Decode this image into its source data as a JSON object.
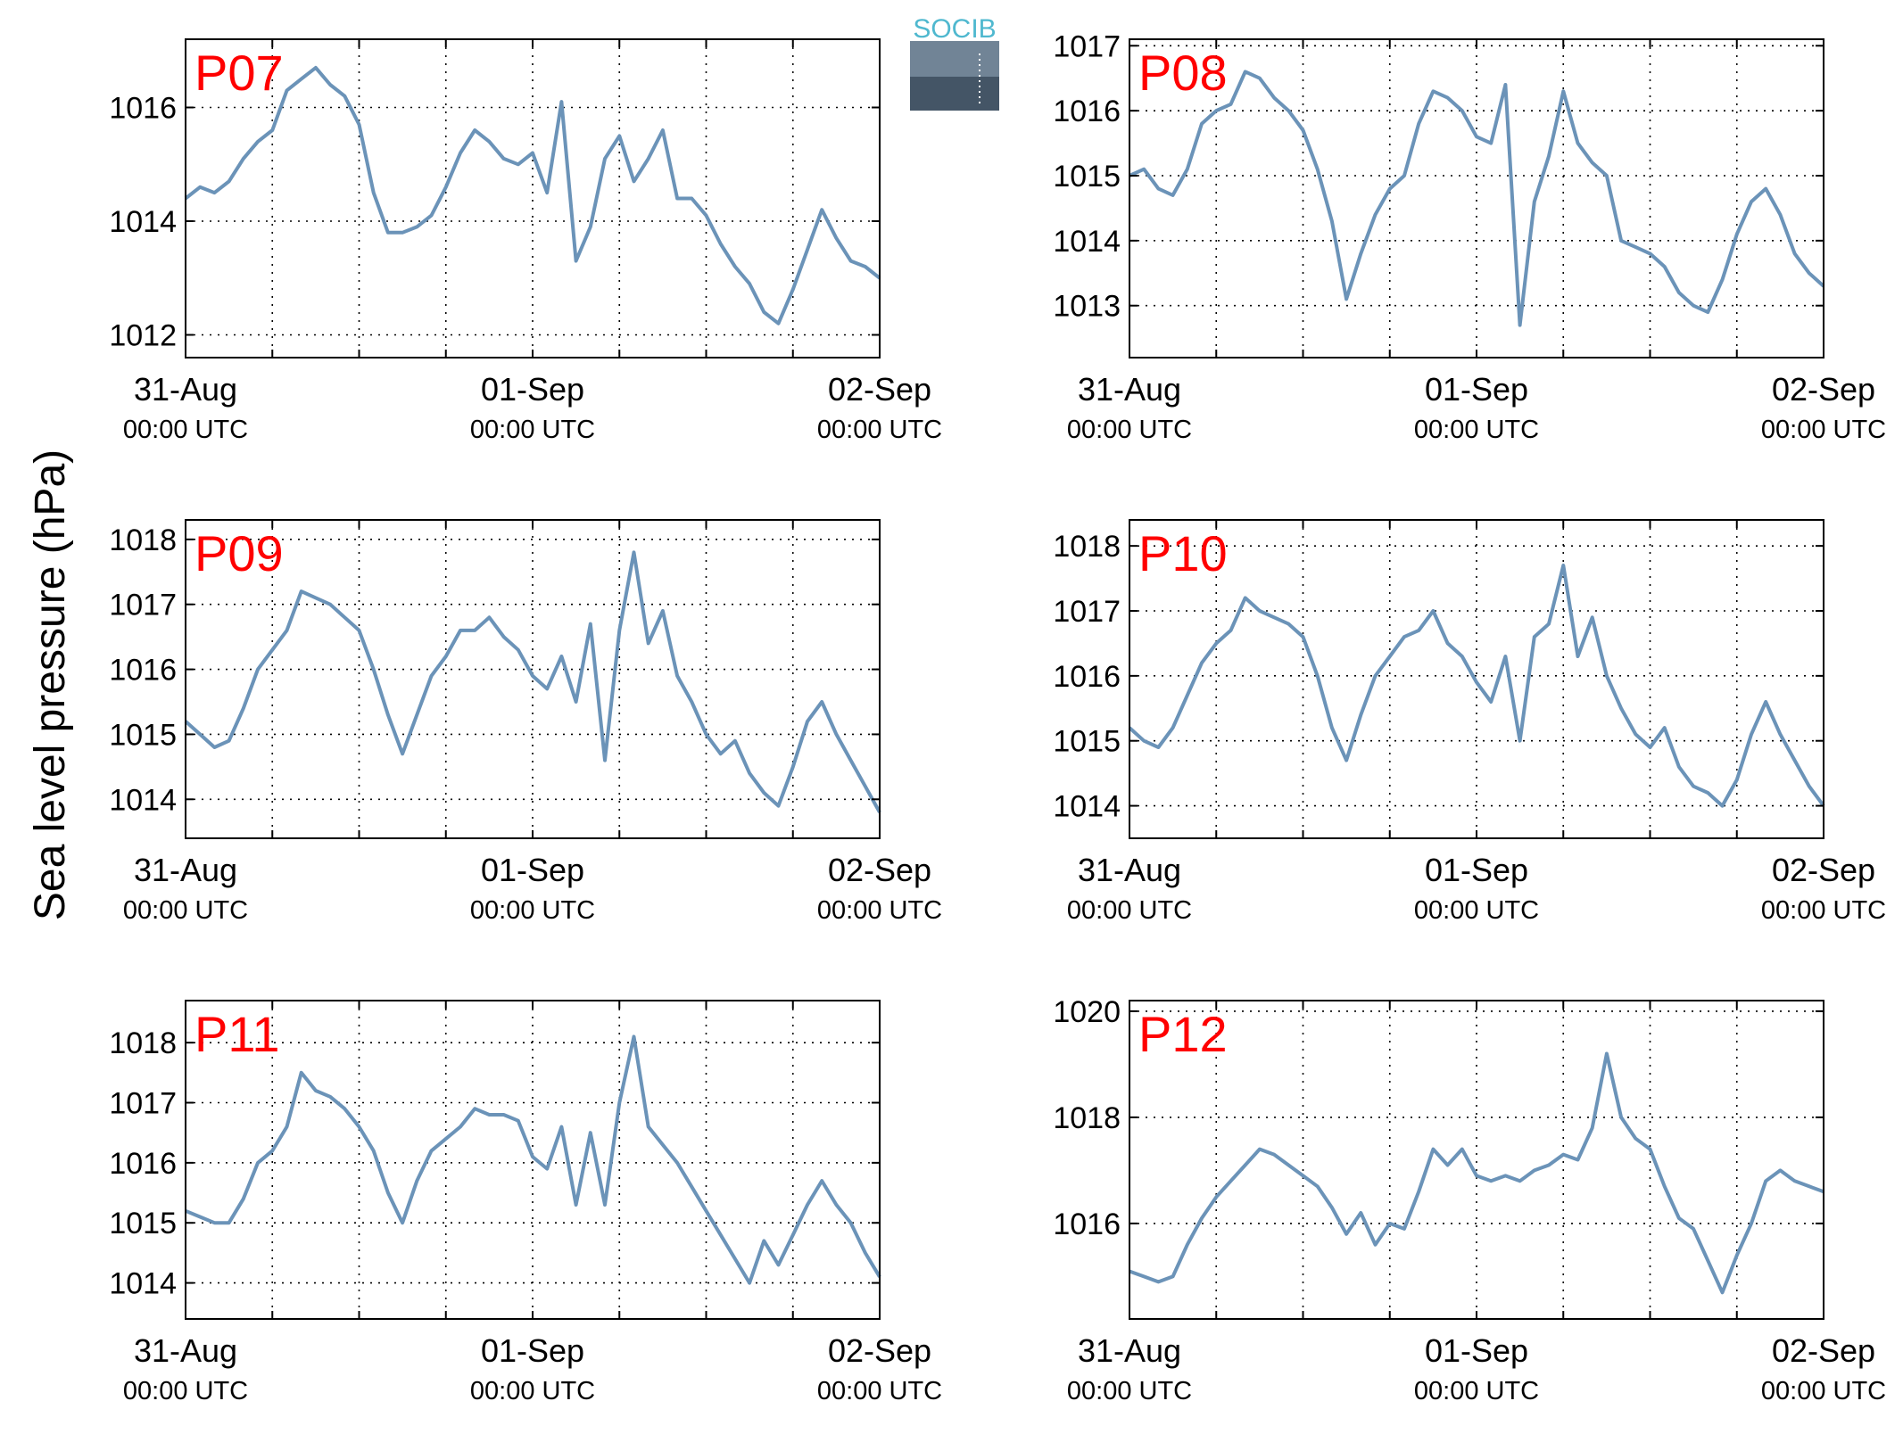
{
  "figure": {
    "ylabel": "Sea level pressure (hPa)",
    "logo_text": "SOCIB",
    "colors": {
      "line": "#6b93b8",
      "panel_label": "#ff0000",
      "axis": "#000000",
      "grid": "#000000"
    }
  },
  "chart_data": [
    {
      "type": "line",
      "title": "P07",
      "xlim": [
        0,
        48
      ],
      "ylim": [
        1011.6,
        1017.2
      ],
      "yticks": [
        1012,
        1014,
        1016
      ],
      "xticks": [
        {
          "hour": 0,
          "label": "31-Aug",
          "sublabel": "00:00 UTC"
        },
        {
          "hour": 24,
          "label": "01-Sep",
          "sublabel": "00:00 UTC"
        },
        {
          "hour": 48,
          "label": "02-Sep",
          "sublabel": "00:00 UTC"
        }
      ],
      "minor_xticks": [
        6,
        12,
        18,
        30,
        36,
        42
      ],
      "series": [
        {
          "x": [
            0,
            1,
            2,
            3,
            4,
            5,
            6,
            7,
            8,
            9,
            10,
            11,
            12,
            13,
            14,
            15,
            16,
            17,
            18,
            19,
            20,
            21,
            22,
            23,
            24,
            25,
            26,
            27,
            28,
            29,
            30,
            31,
            32,
            33,
            34,
            35,
            36,
            37,
            38,
            39,
            40,
            41,
            42,
            43,
            44,
            45,
            46,
            47,
            48
          ],
          "values": [
            1014.4,
            1014.6,
            1014.5,
            1014.7,
            1015.1,
            1015.4,
            1015.6,
            1016.3,
            1016.5,
            1016.7,
            1016.4,
            1016.2,
            1015.7,
            1014.5,
            1013.8,
            1013.8,
            1013.9,
            1014.1,
            1014.6,
            1015.2,
            1015.6,
            1015.4,
            1015.1,
            1015.0,
            1015.2,
            1014.5,
            1016.1,
            1013.3,
            1013.9,
            1015.1,
            1015.5,
            1014.7,
            1015.1,
            1015.6,
            1014.4,
            1014.4,
            1014.1,
            1013.6,
            1013.2,
            1012.9,
            1012.4,
            1012.2,
            1012.8,
            1013.5,
            1014.2,
            1013.7,
            1013.3,
            1013.2,
            1013.0
          ]
        }
      ]
    },
    {
      "type": "line",
      "title": "P08",
      "xlim": [
        0,
        48
      ],
      "ylim": [
        1012.2,
        1017.1
      ],
      "yticks": [
        1013,
        1014,
        1015,
        1016,
        1017
      ],
      "xticks": [
        {
          "hour": 0,
          "label": "31-Aug",
          "sublabel": "00:00 UTC"
        },
        {
          "hour": 24,
          "label": "01-Sep",
          "sublabel": "00:00 UTC"
        },
        {
          "hour": 48,
          "label": "02-Sep",
          "sublabel": "00:00 UTC"
        }
      ],
      "minor_xticks": [
        6,
        12,
        18,
        30,
        36,
        42
      ],
      "series": [
        {
          "x": [
            0,
            1,
            2,
            3,
            4,
            5,
            6,
            7,
            8,
            9,
            10,
            11,
            12,
            13,
            14,
            15,
            16,
            17,
            18,
            19,
            20,
            21,
            22,
            23,
            24,
            25,
            26,
            27,
            28,
            29,
            30,
            31,
            32,
            33,
            34,
            35,
            36,
            37,
            38,
            39,
            40,
            41,
            42,
            43,
            44,
            45,
            46,
            47,
            48
          ],
          "values": [
            1015.0,
            1015.1,
            1014.8,
            1014.7,
            1015.1,
            1015.8,
            1016.0,
            1016.1,
            1016.6,
            1016.5,
            1016.2,
            1016.0,
            1015.7,
            1015.1,
            1014.3,
            1013.1,
            1013.8,
            1014.4,
            1014.8,
            1015.0,
            1015.8,
            1016.3,
            1016.2,
            1016.0,
            1015.6,
            1015.5,
            1016.4,
            1012.7,
            1014.6,
            1015.3,
            1016.3,
            1015.5,
            1015.2,
            1015.0,
            1014.0,
            1013.9,
            1013.8,
            1013.6,
            1013.2,
            1013.0,
            1012.9,
            1013.4,
            1014.1,
            1014.6,
            1014.8,
            1014.4,
            1013.8,
            1013.5,
            1013.3
          ]
        }
      ]
    },
    {
      "type": "line",
      "title": "P09",
      "xlim": [
        0,
        48
      ],
      "ylim": [
        1013.4,
        1018.3
      ],
      "yticks": [
        1014,
        1015,
        1016,
        1017,
        1018
      ],
      "xticks": [
        {
          "hour": 0,
          "label": "31-Aug",
          "sublabel": "00:00 UTC"
        },
        {
          "hour": 24,
          "label": "01-Sep",
          "sublabel": "00:00 UTC"
        },
        {
          "hour": 48,
          "label": "02-Sep",
          "sublabel": "00:00 UTC"
        }
      ],
      "minor_xticks": [
        6,
        12,
        18,
        30,
        36,
        42
      ],
      "series": [
        {
          "x": [
            0,
            1,
            2,
            3,
            4,
            5,
            6,
            7,
            8,
            9,
            10,
            11,
            12,
            13,
            14,
            15,
            16,
            17,
            18,
            19,
            20,
            21,
            22,
            23,
            24,
            25,
            26,
            27,
            28,
            29,
            30,
            31,
            32,
            33,
            34,
            35,
            36,
            37,
            38,
            39,
            40,
            41,
            42,
            43,
            44,
            45,
            46,
            47,
            48
          ],
          "values": [
            1015.2,
            1015.0,
            1014.8,
            1014.9,
            1015.4,
            1016.0,
            1016.3,
            1016.6,
            1017.2,
            1017.1,
            1017.0,
            1016.8,
            1016.6,
            1016.0,
            1015.3,
            1014.7,
            1015.3,
            1015.9,
            1016.2,
            1016.6,
            1016.6,
            1016.8,
            1016.5,
            1016.3,
            1015.9,
            1015.7,
            1016.2,
            1015.5,
            1016.7,
            1014.6,
            1016.6,
            1017.8,
            1016.4,
            1016.9,
            1015.9,
            1015.5,
            1015.0,
            1014.7,
            1014.9,
            1014.4,
            1014.1,
            1013.9,
            1014.5,
            1015.2,
            1015.5,
            1015.0,
            1014.6,
            1014.2,
            1013.8
          ]
        }
      ]
    },
    {
      "type": "line",
      "title": "P10",
      "xlim": [
        0,
        48
      ],
      "ylim": [
        1013.5,
        1018.4
      ],
      "yticks": [
        1014,
        1015,
        1016,
        1017,
        1018
      ],
      "xticks": [
        {
          "hour": 0,
          "label": "31-Aug",
          "sublabel": "00:00 UTC"
        },
        {
          "hour": 24,
          "label": "01-Sep",
          "sublabel": "00:00 UTC"
        },
        {
          "hour": 48,
          "label": "02-Sep",
          "sublabel": "00:00 UTC"
        }
      ],
      "minor_xticks": [
        6,
        12,
        18,
        30,
        36,
        42
      ],
      "series": [
        {
          "x": [
            0,
            1,
            2,
            3,
            4,
            5,
            6,
            7,
            8,
            9,
            10,
            11,
            12,
            13,
            14,
            15,
            16,
            17,
            18,
            19,
            20,
            21,
            22,
            23,
            24,
            25,
            26,
            27,
            28,
            29,
            30,
            31,
            32,
            33,
            34,
            35,
            36,
            37,
            38,
            39,
            40,
            41,
            42,
            43,
            44,
            45,
            46,
            47,
            48
          ],
          "values": [
            1015.2,
            1015.0,
            1014.9,
            1015.2,
            1015.7,
            1016.2,
            1016.5,
            1016.7,
            1017.2,
            1017.0,
            1016.9,
            1016.8,
            1016.6,
            1016.0,
            1015.2,
            1014.7,
            1015.4,
            1016.0,
            1016.3,
            1016.6,
            1016.7,
            1017.0,
            1016.5,
            1016.3,
            1015.9,
            1015.6,
            1016.3,
            1015.0,
            1016.6,
            1016.8,
            1017.7,
            1016.3,
            1016.9,
            1016.0,
            1015.5,
            1015.1,
            1014.9,
            1015.2,
            1014.6,
            1014.3,
            1014.2,
            1014.0,
            1014.4,
            1015.1,
            1015.6,
            1015.1,
            1014.7,
            1014.3,
            1014.0
          ]
        }
      ]
    },
    {
      "type": "line",
      "title": "P11",
      "xlim": [
        0,
        48
      ],
      "ylim": [
        1013.4,
        1018.7
      ],
      "yticks": [
        1014,
        1015,
        1016,
        1017,
        1018
      ],
      "xticks": [
        {
          "hour": 0,
          "label": "31-Aug",
          "sublabel": "00:00 UTC"
        },
        {
          "hour": 24,
          "label": "01-Sep",
          "sublabel": "00:00 UTC"
        },
        {
          "hour": 48,
          "label": "02-Sep",
          "sublabel": "00:00 UTC"
        }
      ],
      "minor_xticks": [
        6,
        12,
        18,
        30,
        36,
        42
      ],
      "series": [
        {
          "x": [
            0,
            1,
            2,
            3,
            4,
            5,
            6,
            7,
            8,
            9,
            10,
            11,
            12,
            13,
            14,
            15,
            16,
            17,
            18,
            19,
            20,
            21,
            22,
            23,
            24,
            25,
            26,
            27,
            28,
            29,
            30,
            31,
            32,
            33,
            34,
            35,
            36,
            37,
            38,
            39,
            40,
            41,
            42,
            43,
            44,
            45,
            46,
            47,
            48
          ],
          "values": [
            1015.2,
            1015.1,
            1015.0,
            1015.0,
            1015.4,
            1016.0,
            1016.2,
            1016.6,
            1017.5,
            1017.2,
            1017.1,
            1016.9,
            1016.6,
            1016.2,
            1015.5,
            1015.0,
            1015.7,
            1016.2,
            1016.4,
            1016.6,
            1016.9,
            1016.8,
            1016.8,
            1016.7,
            1016.1,
            1015.9,
            1016.6,
            1015.3,
            1016.5,
            1015.3,
            1017.0,
            1018.1,
            1016.6,
            1016.3,
            1016.0,
            1015.6,
            1015.2,
            1014.8,
            1014.4,
            1014.0,
            1014.7,
            1014.3,
            1014.8,
            1015.3,
            1015.7,
            1015.3,
            1015.0,
            1014.5,
            1014.1
          ]
        }
      ]
    },
    {
      "type": "line",
      "title": "P12",
      "xlim": [
        0,
        48
      ],
      "ylim": [
        1014.2,
        1020.2
      ],
      "yticks": [
        1016,
        1018,
        1020
      ],
      "xticks": [
        {
          "hour": 0,
          "label": "31-Aug",
          "sublabel": "00:00 UTC"
        },
        {
          "hour": 24,
          "label": "01-Sep",
          "sublabel": "00:00 UTC"
        },
        {
          "hour": 48,
          "label": "02-Sep",
          "sublabel": "00:00 UTC"
        }
      ],
      "minor_xticks": [
        6,
        12,
        18,
        30,
        36,
        42
      ],
      "series": [
        {
          "x": [
            0,
            1,
            2,
            3,
            4,
            5,
            6,
            7,
            8,
            9,
            10,
            11,
            12,
            13,
            14,
            15,
            16,
            17,
            18,
            19,
            20,
            21,
            22,
            23,
            24,
            25,
            26,
            27,
            28,
            29,
            30,
            31,
            32,
            33,
            34,
            35,
            36,
            37,
            38,
            39,
            40,
            41,
            42,
            43,
            44,
            45,
            46,
            47,
            48
          ],
          "values": [
            1015.1,
            1015.0,
            1014.9,
            1015.0,
            1015.6,
            1016.1,
            1016.5,
            1016.8,
            1017.1,
            1017.4,
            1017.3,
            1017.1,
            1016.9,
            1016.7,
            1016.3,
            1015.8,
            1016.2,
            1015.6,
            1016.0,
            1015.9,
            1016.6,
            1017.4,
            1017.1,
            1017.4,
            1016.9,
            1016.8,
            1016.9,
            1016.8,
            1017.0,
            1017.1,
            1017.3,
            1017.2,
            1017.8,
            1019.2,
            1018.0,
            1017.6,
            1017.4,
            1016.7,
            1016.1,
            1015.9,
            1015.3,
            1014.7,
            1015.4,
            1016.0,
            1016.8,
            1017.0,
            1016.8,
            1016.7,
            1016.6
          ]
        }
      ]
    }
  ]
}
